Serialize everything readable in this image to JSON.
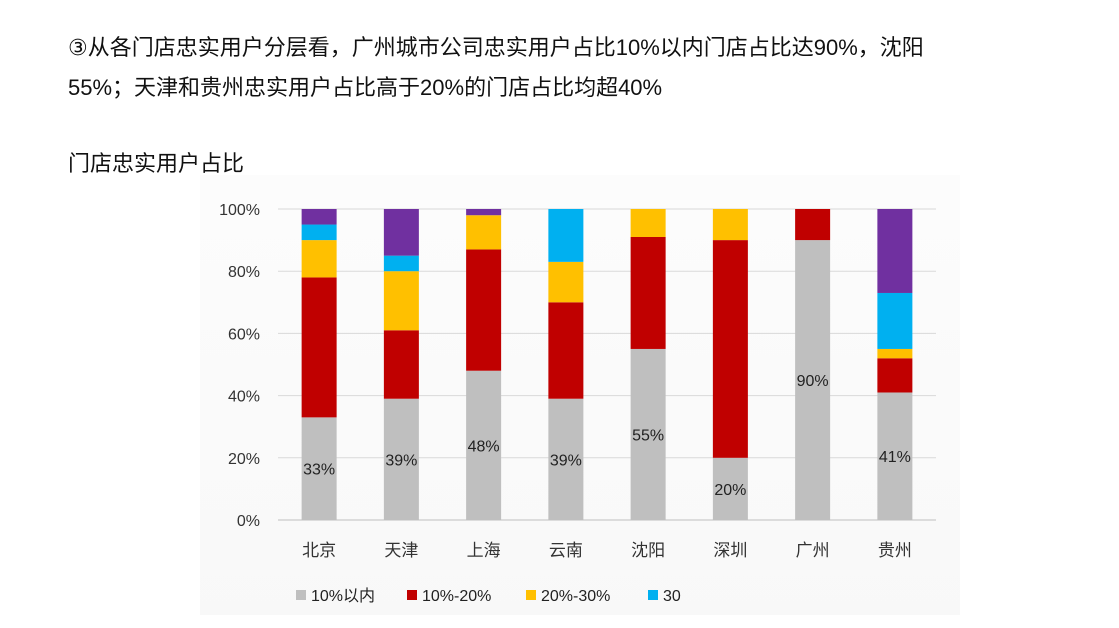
{
  "paragraph": {
    "line1": "③从各门店忠实用户分层看，广州城市公司忠实用户占比10%以内门店占比达90%，沈阳",
    "line2": "55%；天津和贵州忠实用户占比高于20%的门店占比均超40%"
  },
  "chart_title": "门店忠实用户占比",
  "chart_data": {
    "type": "bar",
    "stacked": true,
    "categories": [
      "北京",
      "天津",
      "上海",
      "云南",
      "沈阳",
      "深圳",
      "广州",
      "贵州"
    ],
    "series": [
      {
        "name": "10%以内",
        "color": "#bfbfbf",
        "values": [
          33,
          39,
          48,
          39,
          55,
          20,
          90,
          41
        ]
      },
      {
        "name": "10%-20%",
        "color": "#c00000",
        "values": [
          45,
          22,
          39,
          31,
          36,
          70,
          10,
          11
        ]
      },
      {
        "name": "20%-30%",
        "color": "#ffc000",
        "values": [
          12,
          19,
          11,
          13,
          9,
          10,
          0,
          3
        ]
      },
      {
        "name": "30",
        "color": "#00b0f0",
        "values": [
          5,
          5,
          0,
          17,
          0,
          0,
          0,
          18
        ]
      },
      {
        "name": "",
        "color": "#7030a0",
        "values": [
          5,
          15,
          2,
          0,
          0,
          0,
          0,
          27
        ]
      }
    ],
    "data_labels": [
      "33%",
      "39%",
      "48%",
      "39%",
      "55%",
      "20%",
      "90%",
      "41%"
    ],
    "yticks": [
      "100%",
      "80%",
      "60%",
      "40%",
      "20%",
      "0%"
    ],
    "ylim": [
      0,
      100
    ],
    "grid": true,
    "legend_position": "bottom"
  }
}
